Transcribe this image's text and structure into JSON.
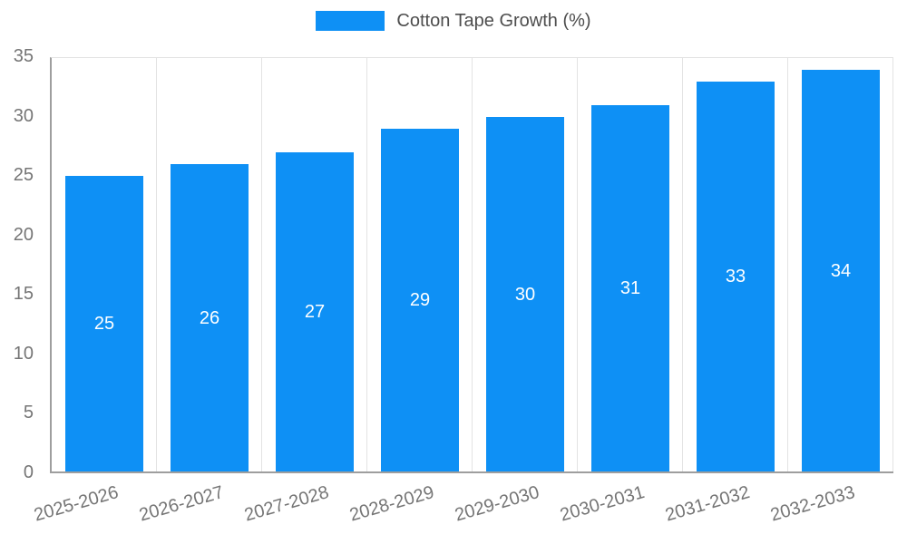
{
  "chart_data": {
    "type": "bar",
    "title": "Cotton Tape Growth (%)",
    "categories": [
      "2025-2026",
      "2026-2027",
      "2027-2028",
      "2028-2029",
      "2029-2030",
      "2030-2031",
      "2031-2032",
      "2032-2033"
    ],
    "values": [
      25,
      26,
      27,
      29,
      30,
      31,
      33,
      34
    ],
    "xlabel": "",
    "ylabel": "",
    "ylim": [
      0,
      35
    ],
    "yticks": [
      "0",
      "5",
      "10",
      "15",
      "20",
      "25",
      "30",
      "35"
    ],
    "legend_position": "top",
    "grid": "vertical-only",
    "bar_labels_inside": true,
    "colors": {
      "bar": "#0e90f5",
      "bar_label": "#ffffff",
      "tick_text": "#757575",
      "grid": "#e3e3e3",
      "axis": "#9e9e9e",
      "legend_text": "#4d4d4d"
    }
  }
}
